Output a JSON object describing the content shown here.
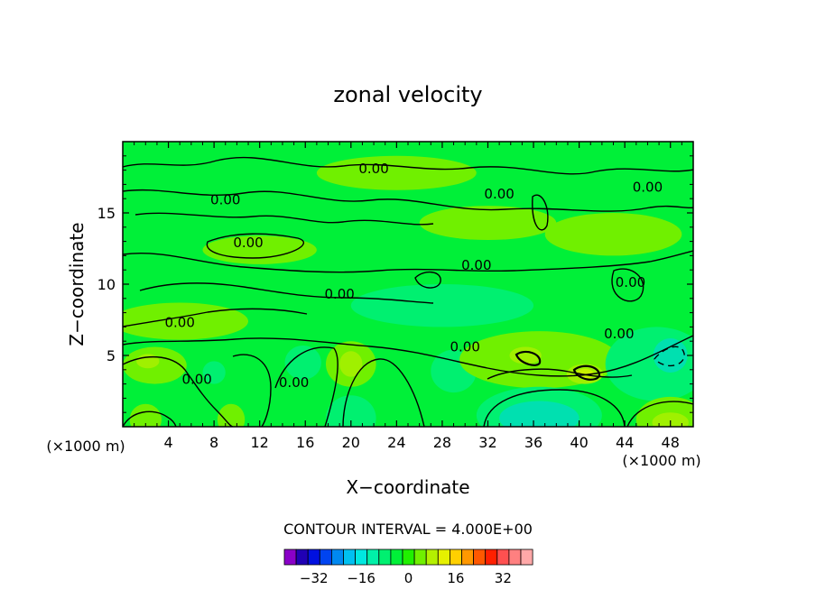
{
  "chart_data": {
    "type": "heatmap",
    "title": "zonal velocity",
    "xlabel": "X−coordinate",
    "ylabel": "Z−coordinate",
    "x_unit_left": "(×1000 m)",
    "x_unit_right": "(×1000 m)",
    "xlim": [
      0,
      50
    ],
    "ylim": [
      0,
      20
    ],
    "x_ticks": [
      4,
      8,
      12,
      16,
      20,
      24,
      28,
      32,
      36,
      40,
      44,
      48
    ],
    "y_ticks": [
      5,
      10,
      15
    ],
    "contour_interval_text": "CONTOUR INTERVAL = 4.000E+00",
    "contour_labels": [
      {
        "text": "0.00",
        "x": 22,
        "y": 17.8
      },
      {
        "text": "0.00",
        "x": 9,
        "y": 15.6
      },
      {
        "text": "0.00",
        "x": 33,
        "y": 16.0
      },
      {
        "text": "0.00",
        "x": 46,
        "y": 16.5
      },
      {
        "text": "0.00",
        "x": 11,
        "y": 12.6
      },
      {
        "text": "0.00",
        "x": 31,
        "y": 11.0
      },
      {
        "text": "0.00",
        "x": 19,
        "y": 9.0
      },
      {
        "text": "0.00",
        "x": 44.5,
        "y": 9.8
      },
      {
        "text": "0.00",
        "x": 5,
        "y": 7.0
      },
      {
        "text": "0.00",
        "x": 30,
        "y": 5.3
      },
      {
        "text": "0.00",
        "x": 43.5,
        "y": 6.2
      },
      {
        "text": "0.00",
        "x": 6.5,
        "y": 3.0
      },
      {
        "text": "0.00",
        "x": 15,
        "y": 2.8
      }
    ],
    "colorbar": {
      "ticks": [
        "−32",
        "−16",
        "0",
        "16",
        "32"
      ],
      "colors": [
        "#8a00c8",
        "#2000b4",
        "#0010e0",
        "#0044f0",
        "#0088f0",
        "#00c0f0",
        "#00e8e0",
        "#00f0a8",
        "#00f070",
        "#00f038",
        "#20f000",
        "#70f000",
        "#b4f000",
        "#e6f000",
        "#ffd000",
        "#ff9800",
        "#ff5800",
        "#ff2000",
        "#ff5050",
        "#ff8080",
        "#ffa8a8"
      ]
    },
    "anomalies": [
      {
        "cx": 2.8,
        "cy": 4.3,
        "rx": 2.8,
        "ry": 1.3,
        "level": 1
      },
      {
        "cx": 2.2,
        "cy": 4.6,
        "rx": 1.0,
        "ry": 0.5,
        "level": 2
      },
      {
        "cx": 8.0,
        "cy": 3.8,
        "rx": 1.0,
        "ry": 0.8,
        "level": -1
      },
      {
        "cx": 15.8,
        "cy": 4.5,
        "rx": 1.6,
        "ry": 1.2,
        "level": -1
      },
      {
        "cx": 20.0,
        "cy": 4.4,
        "rx": 2.2,
        "ry": 1.6,
        "level": 1
      },
      {
        "cx": 20.0,
        "cy": 4.4,
        "rx": 1.0,
        "ry": 0.9,
        "level": 2
      },
      {
        "cx": 29.0,
        "cy": 3.9,
        "rx": 2.0,
        "ry": 1.5,
        "level": -1
      },
      {
        "cx": 36.5,
        "cy": 4.7,
        "rx": 7.0,
        "ry": 2.0,
        "level": 1
      },
      {
        "cx": 35.3,
        "cy": 5.0,
        "rx": 1.4,
        "ry": 0.6,
        "level": 2
      },
      {
        "cx": 40.5,
        "cy": 3.7,
        "rx": 1.6,
        "ry": 0.7,
        "level": 2
      },
      {
        "cx": 40.5,
        "cy": 3.7,
        "rx": 0.8,
        "ry": 0.35,
        "level": 3
      },
      {
        "cx": 46.8,
        "cy": 4.4,
        "rx": 4.5,
        "ry": 2.6,
        "level": -1
      },
      {
        "cx": 48.0,
        "cy": 5.0,
        "rx": 1.5,
        "ry": 1.2,
        "level": -2
      },
      {
        "cx": 2.0,
        "cy": 0.5,
        "rx": 1.4,
        "ry": 1.1,
        "level": 1
      },
      {
        "cx": 9.5,
        "cy": 0.5,
        "rx": 1.2,
        "ry": 1.1,
        "level": 1
      },
      {
        "cx": 20.0,
        "cy": 0.6,
        "rx": 2.2,
        "ry": 1.6,
        "level": -1
      },
      {
        "cx": 36.5,
        "cy": 0.8,
        "rx": 5.5,
        "ry": 2.0,
        "level": -1
      },
      {
        "cx": 36.5,
        "cy": 0.6,
        "rx": 3.5,
        "ry": 1.2,
        "level": -2
      },
      {
        "cx": 48.0,
        "cy": 0.5,
        "rx": 3.0,
        "ry": 1.6,
        "level": 1
      },
      {
        "cx": 48.0,
        "cy": 0.3,
        "rx": 1.6,
        "ry": 0.7,
        "level": 2
      },
      {
        "cx": 12.0,
        "cy": 12.4,
        "rx": 5.0,
        "ry": 1.0,
        "level": 1
      },
      {
        "cx": 24.0,
        "cy": 17.8,
        "rx": 7.0,
        "ry": 1.2,
        "level": 1
      },
      {
        "cx": 5.0,
        "cy": 7.4,
        "rx": 6.0,
        "ry": 1.3,
        "level": 1
      },
      {
        "cx": 43.0,
        "cy": 13.5,
        "rx": 6.0,
        "ry": 1.5,
        "level": 1
      },
      {
        "cx": 32.0,
        "cy": 14.3,
        "rx": 6.0,
        "ry": 1.2,
        "level": 1
      },
      {
        "cx": 28.0,
        "cy": 8.5,
        "rx": 8.0,
        "ry": 1.5,
        "level": -1
      }
    ]
  }
}
